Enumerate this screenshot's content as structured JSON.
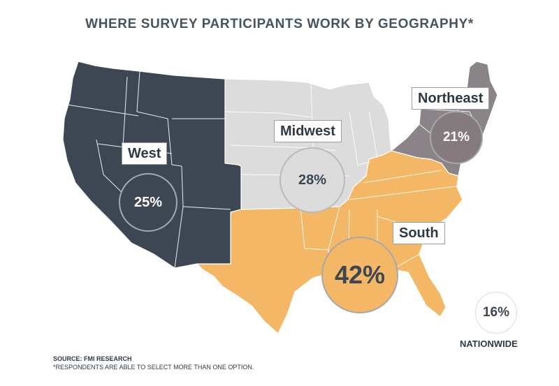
{
  "title": "WHERE SURVEY PARTICIPANTS WORK BY GEOGRAPHY*",
  "regions": [
    {
      "key": "west",
      "label": "West",
      "percent": "25%",
      "color": "#3d4754"
    },
    {
      "key": "midwest",
      "label": "Midwest",
      "percent": "28%",
      "color": "#dcdcdc"
    },
    {
      "key": "northeast",
      "label": "Northeast",
      "percent": "21%",
      "color": "#8a8387"
    },
    {
      "key": "south",
      "label": "South",
      "percent": "42%",
      "color": "#f3b766"
    }
  ],
  "nationwide": {
    "percent": "16%",
    "label": "NATIONWIDE"
  },
  "footer": {
    "source": "SOURCE: FMI RESEARCH",
    "footnote": "*RESPONDENTS ARE ABLE TO SELECT MORE THAN ONE OPTION."
  }
}
